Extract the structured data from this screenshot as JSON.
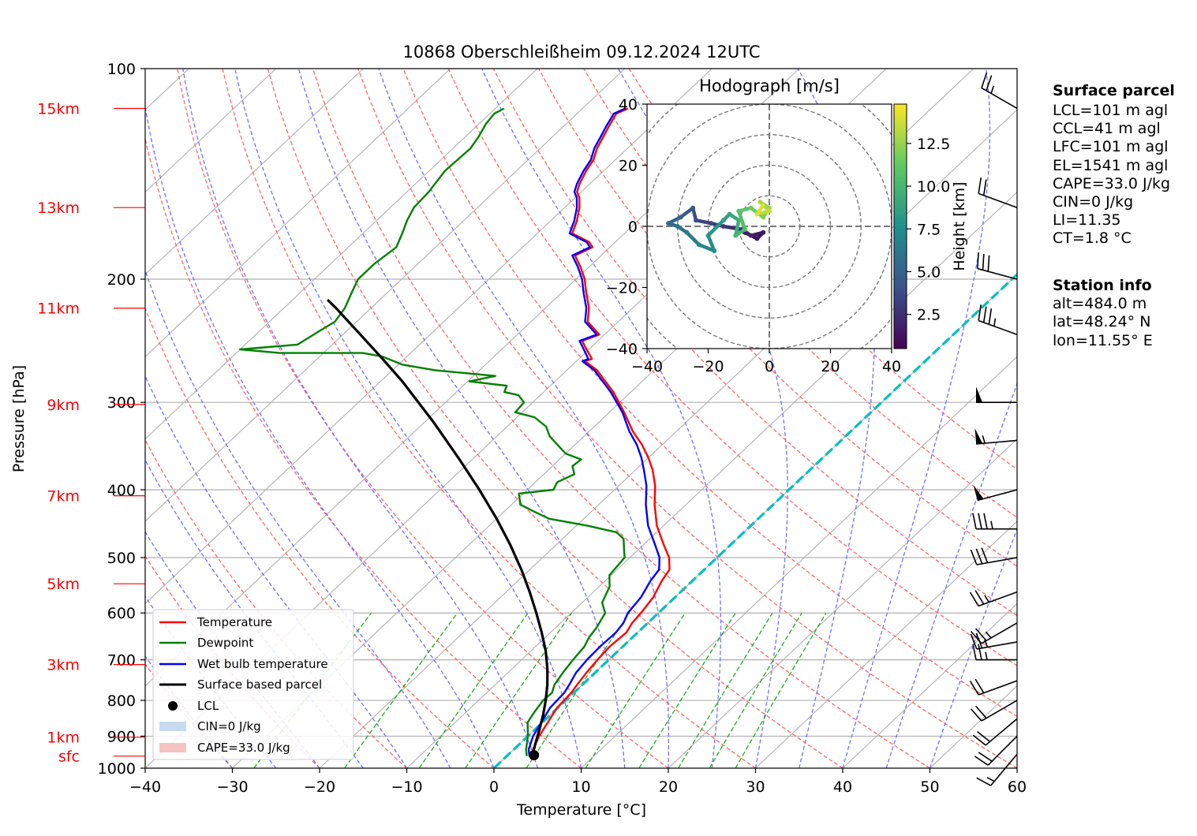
{
  "chart_data": {
    "type": "line",
    "title": "10868 Oberschleißheim 09.12.2024 12UTC",
    "xlabel": "Temperature [°C]",
    "ylabel": "Pressure [hPa]",
    "xlim": [
      -40,
      60
    ],
    "ylim": [
      1000,
      100
    ],
    "y_scale": "log",
    "skew_per_decade_C": 85,
    "grid": true,
    "legend_position": "lower-left",
    "xticks": [
      "−40",
      "−30",
      "−20",
      "−10",
      "0",
      "10",
      "20",
      "30",
      "40",
      "50",
      "60"
    ],
    "yticks": [
      "100",
      "200",
      "300",
      "400",
      "500",
      "600",
      "700",
      "800",
      "900",
      "1000"
    ],
    "height_labels": [
      {
        "p": 961,
        "label": "sfc"
      },
      {
        "p": 903,
        "label": "1km"
      },
      {
        "p": 711,
        "label": "3km"
      },
      {
        "p": 545,
        "label": "5km"
      },
      {
        "p": 408,
        "label": "7km"
      },
      {
        "p": 302,
        "label": "9km"
      },
      {
        "p": 220,
        "label": "11km"
      },
      {
        "p": 158,
        "label": "13km"
      },
      {
        "p": 114,
        "label": "15km"
      }
    ],
    "colors": {
      "temperature": "#ff0000",
      "dewpoint": "#008000",
      "wetbulb": "#0000ff",
      "parcel": "#000000",
      "height_label": "#ff0000",
      "dry_adiabat": "#ff6666",
      "moist_adiabat": "#6f6fff",
      "mixing_ratio": "#22aa22",
      "zero_isotherm": "#00bfbf",
      "cin_fill": "#c6dbef",
      "cape_fill": "#f4c2c2"
    },
    "series": [
      {
        "name": "Temperature",
        "points": [
          [
            3.0,
            961
          ],
          [
            2.2,
            940
          ],
          [
            1.3,
            900
          ],
          [
            -0.1,
            820
          ],
          [
            -0.3,
            780
          ],
          [
            -0.6,
            760
          ],
          [
            -1.0,
            730
          ],
          [
            -1.3,
            700
          ],
          [
            -1.5,
            670
          ],
          [
            -1.3,
            640
          ],
          [
            -1.8,
            620
          ],
          [
            -2.0,
            600
          ],
          [
            -2.5,
            570
          ],
          [
            -3.5,
            540
          ],
          [
            -4.0,
            520
          ],
          [
            -5.5,
            500
          ],
          [
            -7.6,
            480
          ],
          [
            -10.8,
            450
          ],
          [
            -13.6,
            420
          ],
          [
            -15.8,
            395
          ],
          [
            -18.0,
            375
          ],
          [
            -20.0,
            360
          ],
          [
            -22.3,
            345
          ],
          [
            -25.0,
            330
          ],
          [
            -28.3,
            310
          ],
          [
            -32.0,
            290
          ],
          [
            -36.5,
            270
          ],
          [
            -39.0,
            262
          ],
          [
            -38.5,
            260
          ],
          [
            -40.7,
            250
          ],
          [
            -41.8,
            245
          ],
          [
            -40.6,
            240
          ],
          [
            -43.5,
            230
          ],
          [
            -45.0,
            220
          ],
          [
            -47.0,
            210
          ],
          [
            -48.0,
            205
          ],
          [
            -49.0,
            200
          ],
          [
            -51.0,
            192
          ],
          [
            -53.0,
            185
          ],
          [
            -52.0,
            180
          ],
          [
            -53.0,
            177
          ],
          [
            -56.0,
            172
          ],
          [
            -57.0,
            165
          ],
          [
            -58.3,
            158
          ],
          [
            -59.5,
            153
          ],
          [
            -60.5,
            150
          ],
          [
            -61.2,
            146
          ],
          [
            -62.0,
            140
          ],
          [
            -62.5,
            135
          ],
          [
            -63.5,
            130
          ],
          [
            -64.2,
            125
          ],
          [
            -64.8,
            121
          ],
          [
            -65.2,
            118
          ],
          [
            -65.5,
            116
          ],
          [
            -64.8,
            114
          ]
        ]
      },
      {
        "name": "Dewpoint",
        "points": [
          [
            2.3,
            961
          ],
          [
            1.4,
            940
          ],
          [
            0.0,
            900
          ],
          [
            -1.7,
            860
          ],
          [
            -2.2,
            830
          ],
          [
            -2.6,
            800
          ],
          [
            -2.5,
            780
          ],
          [
            -3.2,
            760
          ],
          [
            -3.7,
            730
          ],
          [
            -4.1,
            700
          ],
          [
            -4.4,
            670
          ],
          [
            -5.0,
            650
          ],
          [
            -5.3,
            630
          ],
          [
            -6.1,
            600
          ],
          [
            -7.7,
            580
          ],
          [
            -8.8,
            550
          ],
          [
            -10.2,
            530
          ],
          [
            -10.6,
            500
          ],
          [
            -11.4,
            490
          ],
          [
            -13.0,
            470
          ],
          [
            -14.6,
            460
          ],
          [
            -18.8,
            450
          ],
          [
            -24.0,
            440
          ],
          [
            -26.5,
            430
          ],
          [
            -29.0,
            420
          ],
          [
            -30.5,
            405
          ],
          [
            -27.0,
            400
          ],
          [
            -27.5,
            390
          ],
          [
            -26.5,
            380
          ],
          [
            -27.7,
            370
          ],
          [
            -27.5,
            362
          ],
          [
            -30.0,
            355
          ],
          [
            -31.0,
            350
          ],
          [
            -33.0,
            340
          ],
          [
            -34.0,
            335
          ],
          [
            -35.5,
            325
          ],
          [
            -38.0,
            315
          ],
          [
            -40.8,
            310
          ],
          [
            -41.0,
            300
          ],
          [
            -42.5,
            293
          ],
          [
            -44.5,
            290
          ],
          [
            -45.0,
            284
          ],
          [
            -49.8,
            280
          ],
          [
            -47.5,
            275
          ],
          [
            -55.0,
            270
          ],
          [
            -59.5,
            265
          ],
          [
            -62.8,
            258
          ],
          [
            -65.5,
            255
          ],
          [
            -75.0,
            255
          ],
          [
            -80.0,
            252
          ],
          [
            -74.0,
            248
          ],
          [
            -73.2,
            238
          ],
          [
            -72.5,
            230
          ],
          [
            -73.0,
            220
          ],
          [
            -74.0,
            210
          ],
          [
            -75.0,
            200
          ],
          [
            -75.0,
            190
          ],
          [
            -74.5,
            180
          ],
          [
            -75.5,
            172
          ],
          [
            -76.5,
            165
          ],
          [
            -77.3,
            158
          ],
          [
            -77.5,
            150
          ],
          [
            -78.2,
            140
          ],
          [
            -78.0,
            130
          ],
          [
            -78.5,
            125
          ],
          [
            -79.2,
            120
          ],
          [
            -79.5,
            116
          ],
          [
            -79.0,
            114
          ]
        ]
      },
      {
        "name": "Wet bulb temperature",
        "points": [
          [
            2.6,
            961
          ],
          [
            1.7,
            940
          ],
          [
            0.6,
            900
          ],
          [
            -0.9,
            820
          ],
          [
            -1.1,
            780
          ],
          [
            -1.5,
            760
          ],
          [
            -2.2,
            730
          ],
          [
            -2.5,
            700
          ],
          [
            -2.6,
            670
          ],
          [
            -2.5,
            640
          ],
          [
            -2.8,
            620
          ],
          [
            -3.5,
            600
          ],
          [
            -3.9,
            570
          ],
          [
            -4.8,
            540
          ],
          [
            -5.2,
            520
          ],
          [
            -6.6,
            500
          ],
          [
            -8.6,
            480
          ],
          [
            -11.8,
            450
          ],
          [
            -14.6,
            420
          ],
          [
            -16.8,
            395
          ],
          [
            -19.0,
            375
          ],
          [
            -20.8,
            360
          ],
          [
            -22.9,
            345
          ],
          [
            -25.4,
            330
          ],
          [
            -28.5,
            310
          ],
          [
            -32.3,
            290
          ],
          [
            -36.8,
            270
          ],
          [
            -39.3,
            262
          ],
          [
            -38.9,
            260
          ],
          [
            -41.0,
            250
          ],
          [
            -42.1,
            245
          ],
          [
            -40.9,
            240
          ],
          [
            -43.8,
            230
          ],
          [
            -45.3,
            220
          ],
          [
            -47.3,
            210
          ],
          [
            -48.3,
            205
          ],
          [
            -49.3,
            200
          ],
          [
            -51.3,
            192
          ],
          [
            -53.3,
            185
          ],
          [
            -52.3,
            180
          ],
          [
            -53.3,
            177
          ],
          [
            -56.3,
            172
          ],
          [
            -57.3,
            165
          ],
          [
            -58.6,
            158
          ],
          [
            -59.8,
            153
          ],
          [
            -60.8,
            150
          ],
          [
            -61.5,
            146
          ],
          [
            -62.3,
            140
          ],
          [
            -62.8,
            135
          ],
          [
            -63.8,
            130
          ],
          [
            -64.5,
            125
          ],
          [
            -65.1,
            121
          ],
          [
            -65.5,
            118
          ],
          [
            -65.8,
            116
          ],
          [
            -65.1,
            114
          ]
        ]
      },
      {
        "name": "Surface based parcel",
        "points": [
          [
            3.0,
            961
          ],
          [
            2.6,
            950
          ],
          [
            1.7,
            920
          ],
          [
            0.5,
            880
          ],
          [
            -0.8,
            840
          ],
          [
            -2.3,
            800
          ],
          [
            -4.0,
            760
          ],
          [
            -6.0,
            720
          ],
          [
            -8.3,
            680
          ],
          [
            -11.0,
            640
          ],
          [
            -14.0,
            600
          ],
          [
            -17.3,
            560
          ],
          [
            -21.0,
            520
          ],
          [
            -25.2,
            480
          ],
          [
            -30.0,
            440
          ],
          [
            -35.5,
            400
          ],
          [
            -41.8,
            360
          ],
          [
            -49.0,
            320
          ],
          [
            -57.5,
            280
          ],
          [
            -62.5,
            260
          ],
          [
            -68.0,
            240
          ],
          [
            -74.0,
            220
          ],
          [
            -76.0,
            214
          ]
        ]
      }
    ],
    "lcl": {
      "label": "LCL",
      "t": 3.0,
      "p": 958
    },
    "cin_label": "CIN=0 J/kg",
    "cape_label": "CAPE=33.0 J/kg",
    "wind_barbs": [
      {
        "p": 114,
        "speed_kt": 25,
        "dir_deg": 300
      },
      {
        "p": 158,
        "speed_kt": 20,
        "dir_deg": 290
      },
      {
        "p": 200,
        "speed_kt": 30,
        "dir_deg": 285
      },
      {
        "p": 240,
        "speed_kt": 35,
        "dir_deg": 290
      },
      {
        "p": 300,
        "speed_kt": 50,
        "dir_deg": 270
      },
      {
        "p": 340,
        "speed_kt": 55,
        "dir_deg": 265
      },
      {
        "p": 400,
        "speed_kt": 50,
        "dir_deg": 255
      },
      {
        "p": 455,
        "speed_kt": 35,
        "dir_deg": 270
      },
      {
        "p": 500,
        "speed_kt": 30,
        "dir_deg": 260
      },
      {
        "p": 560,
        "speed_kt": 25,
        "dir_deg": 250
      },
      {
        "p": 620,
        "speed_kt": 25,
        "dir_deg": 240
      },
      {
        "p": 660,
        "speed_kt": 25,
        "dir_deg": 260
      },
      {
        "p": 700,
        "speed_kt": 25,
        "dir_deg": 270
      },
      {
        "p": 750,
        "speed_kt": 20,
        "dir_deg": 250
      },
      {
        "p": 800,
        "speed_kt": 20,
        "dir_deg": 240
      },
      {
        "p": 850,
        "speed_kt": 20,
        "dir_deg": 230
      },
      {
        "p": 900,
        "speed_kt": 20,
        "dir_deg": 225
      },
      {
        "p": 955,
        "speed_kt": 15,
        "dir_deg": 220
      }
    ]
  },
  "hodograph": {
    "title": "Hodograph [m/s]",
    "xlim": [
      -40,
      40
    ],
    "ylim": [
      -40,
      40
    ],
    "ticks": [
      "−40",
      "−20",
      "0",
      "20",
      "40"
    ],
    "colorbar_label": "Height [km]",
    "colorbar_ticks": [
      "2.5",
      "5.0",
      "7.5",
      "10.0",
      "12.5"
    ],
    "trace": [
      {
        "u": -8,
        "v": -2,
        "h": 0.5
      },
      {
        "u": -4,
        "v": -4,
        "h": 1.0
      },
      {
        "u": -2,
        "v": -2,
        "h": 1.5
      },
      {
        "u": -6,
        "v": -3,
        "h": 2.0
      },
      {
        "u": -9,
        "v": -1,
        "h": 2.5
      },
      {
        "u": -15,
        "v": 0,
        "h": 3.0
      },
      {
        "u": -19,
        "v": 1,
        "h": 3.5
      },
      {
        "u": -24,
        "v": 2,
        "h": 4.0
      },
      {
        "u": -25,
        "v": 6,
        "h": 4.5
      },
      {
        "u": -29,
        "v": 3,
        "h": 5.0
      },
      {
        "u": -33,
        "v": 1,
        "h": 5.5
      },
      {
        "u": -30,
        "v": 0,
        "h": 6.0
      },
      {
        "u": -27,
        "v": -2,
        "h": 6.5
      },
      {
        "u": -23,
        "v": -6,
        "h": 7.0
      },
      {
        "u": -18,
        "v": -8,
        "h": 7.5
      },
      {
        "u": -20,
        "v": -3,
        "h": 8.0
      },
      {
        "u": -15,
        "v": 2,
        "h": 8.5
      },
      {
        "u": -13,
        "v": 4,
        "h": 9.0
      },
      {
        "u": -10,
        "v": 2,
        "h": 9.5
      },
      {
        "u": -11,
        "v": -3,
        "h": 10.0
      },
      {
        "u": -8,
        "v": -1,
        "h": 10.5
      },
      {
        "u": -10,
        "v": 5,
        "h": 11.0
      },
      {
        "u": -6,
        "v": 6,
        "h": 11.5
      },
      {
        "u": -2,
        "v": 3,
        "h": 12.0
      },
      {
        "u": 0,
        "v": 6,
        "h": 12.5
      },
      {
        "u": -3,
        "v": 8,
        "h": 13.0
      },
      {
        "u": 0,
        "v": 5,
        "h": 13.5
      },
      {
        "u": -4,
        "v": 4,
        "h": 14.0
      },
      {
        "u": -2,
        "v": 7,
        "h": 14.5
      }
    ]
  },
  "side_info": {
    "surface_title": "Surface parcel",
    "surface_lines": [
      "LCL=101 m agl",
      "CCL=41 m agl",
      "LFC=101 m agl",
      "EL=1541 m agl",
      "CAPE=33.0 J/kg",
      "CIN=0 J/kg",
      "LI=11.35",
      "CT=1.8 °C"
    ],
    "station_title": "Station info",
    "station_lines": [
      "alt=484.0 m",
      "lat=48.24° N",
      "lon=11.55° E"
    ]
  },
  "legend": {
    "temperature": "Temperature",
    "dewpoint": "Dewpoint",
    "wetbulb": "Wet bulb temperature",
    "parcel": "Surface based parcel",
    "lcl": "LCL",
    "cin": "CIN=0 J/kg",
    "cape": "CAPE=33.0 J/kg"
  }
}
